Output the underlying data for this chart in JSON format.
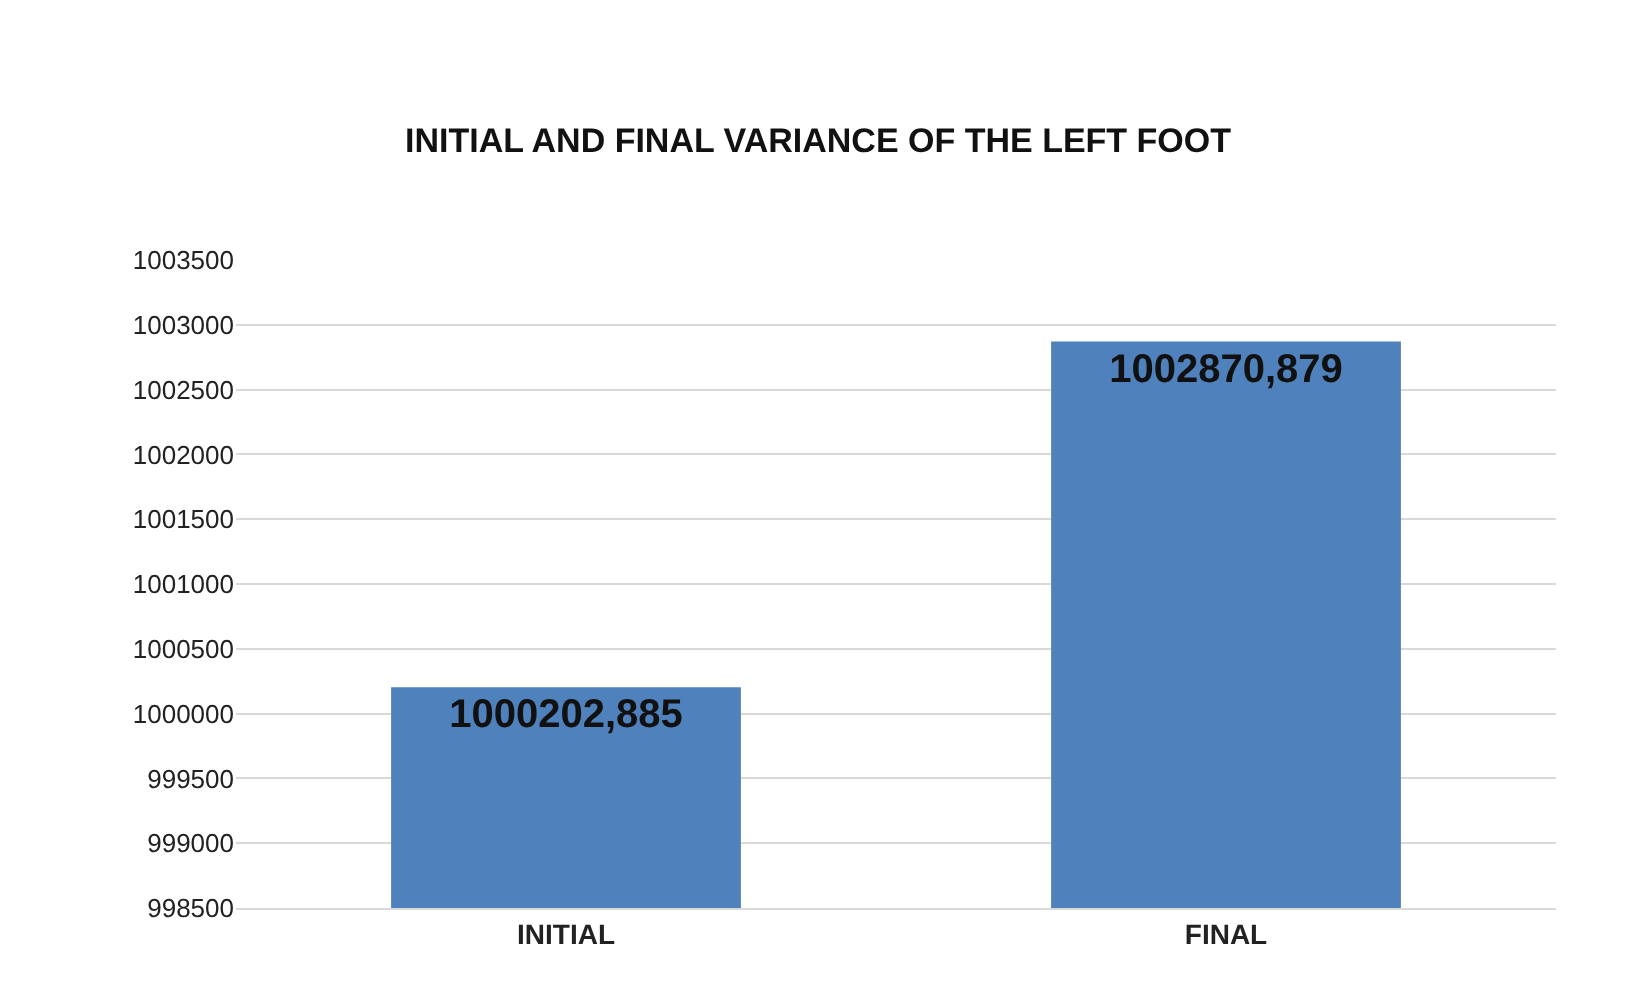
{
  "chart_data": {
    "type": "bar",
    "title": "INITIAL AND FINAL VARIANCE OF THE LEFT FOOT",
    "categories": [
      "INITIAL",
      "FINAL"
    ],
    "values": [
      1000202.885,
      1002870.879
    ],
    "value_labels": [
      "1000202,885",
      "1002870,879"
    ],
    "color": "#4f81bd",
    "ylim": [
      998500,
      1003500
    ],
    "yticks": [
      998500,
      999000,
      999500,
      1000000,
      1000500,
      1001000,
      1001500,
      1002000,
      1002500,
      1003000,
      1003500
    ],
    "grid": "y"
  }
}
